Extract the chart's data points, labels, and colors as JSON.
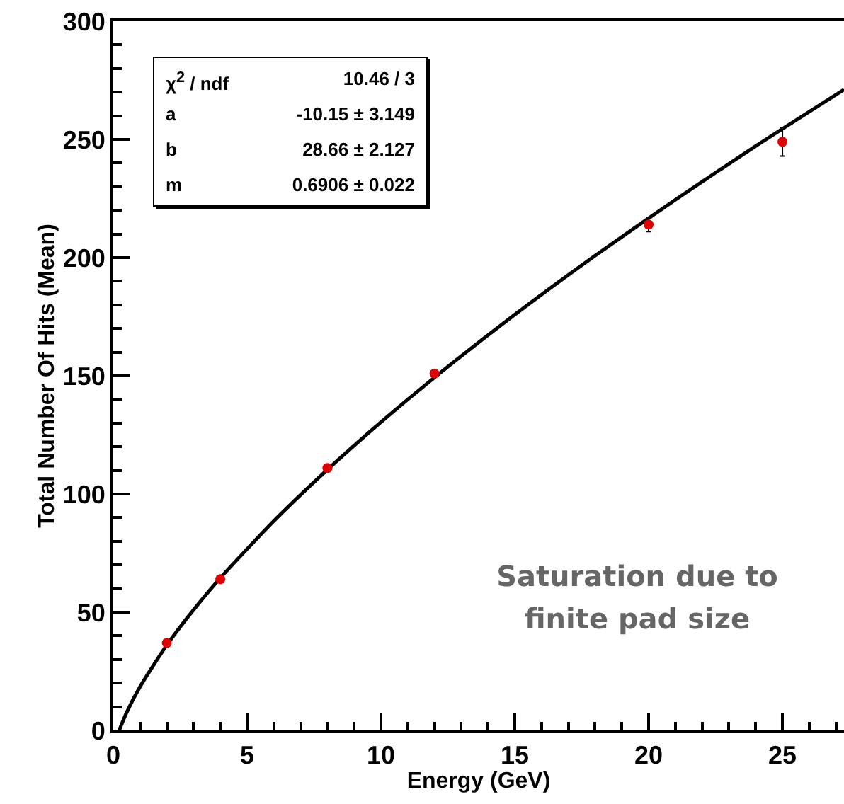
{
  "chart_data": {
    "type": "scatter",
    "xlabel": "Energy (GeV)",
    "ylabel": "Total Number Of Hits (Mean)",
    "xlim": [
      0,
      27.3
    ],
    "ylim": [
      0,
      300
    ],
    "xticks": [
      0,
      {
        "value": 1,
        "label": null
      },
      {
        "value": 2,
        "label": null
      },
      {
        "value": 3,
        "label": null
      },
      {
        "value": 4,
        "label": null
      },
      5,
      {
        "value": 6,
        "label": null
      },
      {
        "value": 7,
        "label": null
      },
      {
        "value": 8,
        "label": null
      },
      {
        "value": 9,
        "label": null
      },
      10,
      {
        "value": 11,
        "label": null
      },
      {
        "value": 12,
        "label": null
      },
      {
        "value": 13,
        "label": null
      },
      {
        "value": 14,
        "label": null
      },
      15,
      {
        "value": 16,
        "label": null
      },
      {
        "value": 17,
        "label": null
      },
      {
        "value": 18,
        "label": null
      },
      {
        "value": 19,
        "label": null
      },
      20,
      {
        "value": 21,
        "label": null
      },
      {
        "value": 22,
        "label": null
      },
      {
        "value": 23,
        "label": null
      },
      {
        "value": 24,
        "label": null
      },
      25,
      {
        "value": 26,
        "label": null
      },
      {
        "value": 27,
        "label": null
      }
    ],
    "yticks": [
      0,
      {
        "value": 10,
        "label": null
      },
      {
        "value": 20,
        "label": null
      },
      {
        "value": 30,
        "label": null
      },
      {
        "value": 40,
        "label": null
      },
      50,
      {
        "value": 60,
        "label": null
      },
      {
        "value": 70,
        "label": null
      },
      {
        "value": 80,
        "label": null
      },
      {
        "value": 90,
        "label": null
      },
      100,
      {
        "value": 110,
        "label": null
      },
      {
        "value": 120,
        "label": null
      },
      {
        "value": 130,
        "label": null
      },
      {
        "value": 140,
        "label": null
      },
      150,
      {
        "value": 160,
        "label": null
      },
      {
        "value": 170,
        "label": null
      },
      {
        "value": 180,
        "label": null
      },
      {
        "value": 190,
        "label": null
      },
      200,
      {
        "value": 210,
        "label": null
      },
      {
        "value": 220,
        "label": null
      },
      {
        "value": 230,
        "label": null
      },
      {
        "value": 240,
        "label": null
      },
      250,
      {
        "value": 260,
        "label": null
      },
      {
        "value": 270,
        "label": null
      },
      {
        "value": 280,
        "label": null
      },
      {
        "value": 290,
        "label": null
      },
      300
    ],
    "grid": false,
    "marker": "circle",
    "series": [
      {
        "color": "#e00000",
        "x": [
          2,
          4,
          8,
          12,
          20,
          25
        ],
        "values": [
          37,
          64,
          111,
          151,
          214,
          249
        ],
        "errors": [
          null,
          null,
          null,
          null,
          3,
          6
        ]
      },
      {
        "type": "line",
        "color": "#000000",
        "line_style": "solid",
        "marker": "none",
        "x": [
          0.22,
          0.5,
          1,
          2,
          3,
          4,
          6,
          8,
          10,
          12,
          15,
          18,
          21,
          24,
          27.3
        ],
        "values": [
          0,
          7.6,
          18.5,
          36.1,
          51,
          64.5,
          88.6,
          110.3,
          130.4,
          149.3,
          175.9,
          200.8,
          224.5,
          247.2,
          271.1
        ]
      }
    ],
    "annotations": [
      "χ$^{2}$ / ndf",
      "10.46 / 3",
      "a",
      "-10.15 ± 3.149",
      "b",
      "28.66 ± 2.127",
      "m",
      "0.6906 ± 0.022",
      "Saturation due to finite pad size"
    ]
  }
}
